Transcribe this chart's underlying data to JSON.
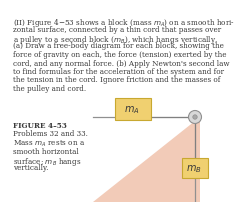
{
  "bg_color": "#ffffff",
  "text_color": "#3a3a3a",
  "triangle_color": "#f2cbb8",
  "block_A_color": "#f0d070",
  "block_A_edge": "#c8a830",
  "block_B_color": "#f0d070",
  "block_B_edge": "#c8a830",
  "pulley_outer_color": "#d8d8d8",
  "pulley_inner_color": "#a8a8a8",
  "pulley_edge_color": "#909090",
  "cord_color": "#808080",
  "surface_color": "#909090",
  "top_text": "(II) Figure 4–53 shows a block (mass m",
  "top_text2": "A",
  "top_text3": ") on a smooth hori-\nzontal surface, connected by a thin cord that passes over\na pulley to a second block (m",
  "top_text4": "B",
  "top_text5": "), which hangs vertically.\n(a) Draw a free-body diagram for each block, showing the\nforce of gravity on each, the force (tension) exerted by the\ncord, and any normal force. (b) Apply Newton’s second law\nto find formulas for the acceleration of the system and for\nthe tension in the cord. Ignore friction and the masses of\nthe pulley and cord.",
  "fig_label": "FIGURE 4–53",
  "fig_line1": "Problems 32 and 33.",
  "fig_line2a": "Mass m",
  "fig_line2b": "A",
  "fig_line2c": " rests on a",
  "fig_line3": "smooth horizontal",
  "fig_line4a": "surface; m",
  "fig_line4b": "B",
  "fig_line4c": " hangs",
  "fig_line5": "vertically.",
  "label_mA": "m",
  "label_mA_sub": "A",
  "label_mB": "m",
  "label_mB_sub": "B"
}
